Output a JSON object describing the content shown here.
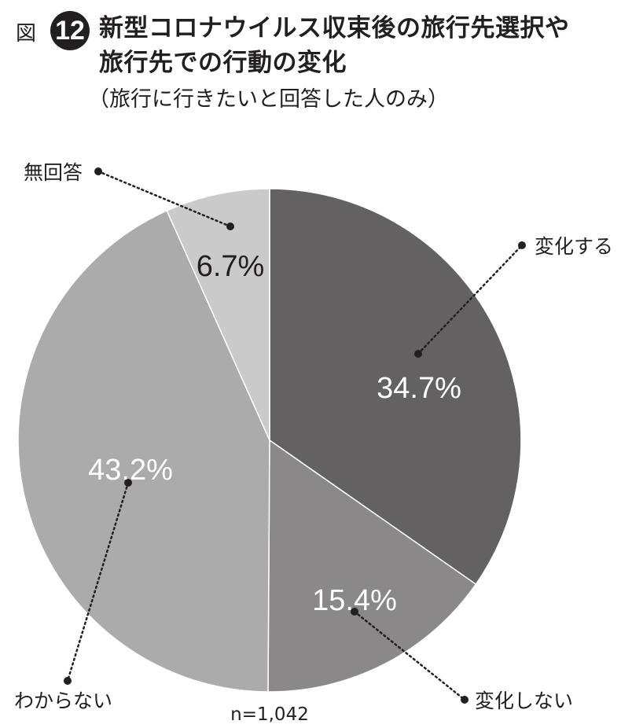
{
  "figure": {
    "label": "図",
    "number": "12",
    "title_line1": "新型コロナウイルス収束後の旅行先選択や",
    "title_line2": "旅行先での行動の変化",
    "subtitle": "（旅行に行きたいと回答した人のみ）"
  },
  "chart_data": {
    "type": "pie",
    "title": "新型コロナウイルス収束後の旅行先選択や旅行先での行動の変化",
    "subtitle": "（旅行に行きたいと回答した人のみ）",
    "note": "n=1,042",
    "slices": [
      {
        "name": "変化する",
        "value": 34.7,
        "label": "34.7%",
        "color": "#646162"
      },
      {
        "name": "変化しない",
        "value": 15.4,
        "label": "15.4%",
        "color": "#8a8889"
      },
      {
        "name": "わからない",
        "value": 43.2,
        "label": "43.2%",
        "color": "#acabab"
      },
      {
        "name": "無回答",
        "value": 6.7,
        "label": "6.7%",
        "color": "#cbcaca"
      }
    ]
  }
}
